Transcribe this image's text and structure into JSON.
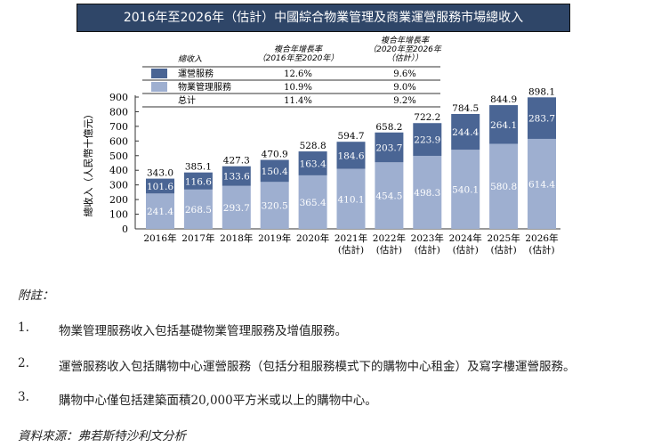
{
  "title": "2016年至2026年（估計）中國綜合物業管理及商業運營服務市場總收入",
  "legend_table": {
    "header_label": "總收入",
    "col1": "複合年增長率\n（2016年至2020年）",
    "col2": "複合年增長率\n（2020年至2026年\n（估計））",
    "rows": [
      {
        "label": "運營服務",
        "c1": "12.6%",
        "c2": "9.6%",
        "color": "#4a6594"
      },
      {
        "label": "物業管理服務",
        "c1": "10.9%",
        "c2": "9.0%",
        "color": "#9eafd0"
      },
      {
        "label": "总计",
        "c1": "11.4%",
        "c2": "9.2%"
      }
    ]
  },
  "chart_data": {
    "type": "bar",
    "stacked": true,
    "ylabel": "總收入（人民幣十億元）",
    "ylim": [
      0,
      900
    ],
    "yticks": [
      0,
      100,
      200,
      300,
      400,
      500,
      600,
      700,
      800,
      900
    ],
    "categories": [
      "2016年",
      "2017年",
      "2018年",
      "2019年",
      "2020年",
      "2021年\n(估計)",
      "2022年\n(估計)",
      "2023年\n(估計)",
      "2024年\n(估計)",
      "2025年\n(估計)",
      "2026年\n(估計)"
    ],
    "series": [
      {
        "name": "物業管理服務",
        "color": "#9eafd0",
        "values": [
          241.4,
          268.5,
          293.7,
          320.5,
          365.4,
          410.1,
          454.5,
          498.3,
          540.1,
          580.8,
          614.4
        ]
      },
      {
        "name": "運營服務",
        "color": "#4a6594",
        "values": [
          101.6,
          116.6,
          133.6,
          150.4,
          163.4,
          184.6,
          203.7,
          223.9,
          244.4,
          264.1,
          283.7
        ]
      }
    ],
    "totals": [
      343.0,
      385.1,
      427.3,
      470.9,
      528.8,
      594.7,
      658.2,
      722.2,
      784.5,
      844.9,
      898.1
    ]
  },
  "notes": {
    "heading": "附註：",
    "items": [
      {
        "num": "1.",
        "text": "物業管理服務收入包括基礎物業管理服務及增值服務。"
      },
      {
        "num": "2.",
        "text": "運營服務收入包括購物中心運營服務（包括分租服務模式下的購物中心租金）及寫字樓運營服務。"
      },
      {
        "num": "3.",
        "text": "購物中心僅包括建築面積20,000平方米或以上的購物中心。"
      }
    ],
    "source": "資料來源：弗若斯特沙利文分析"
  }
}
